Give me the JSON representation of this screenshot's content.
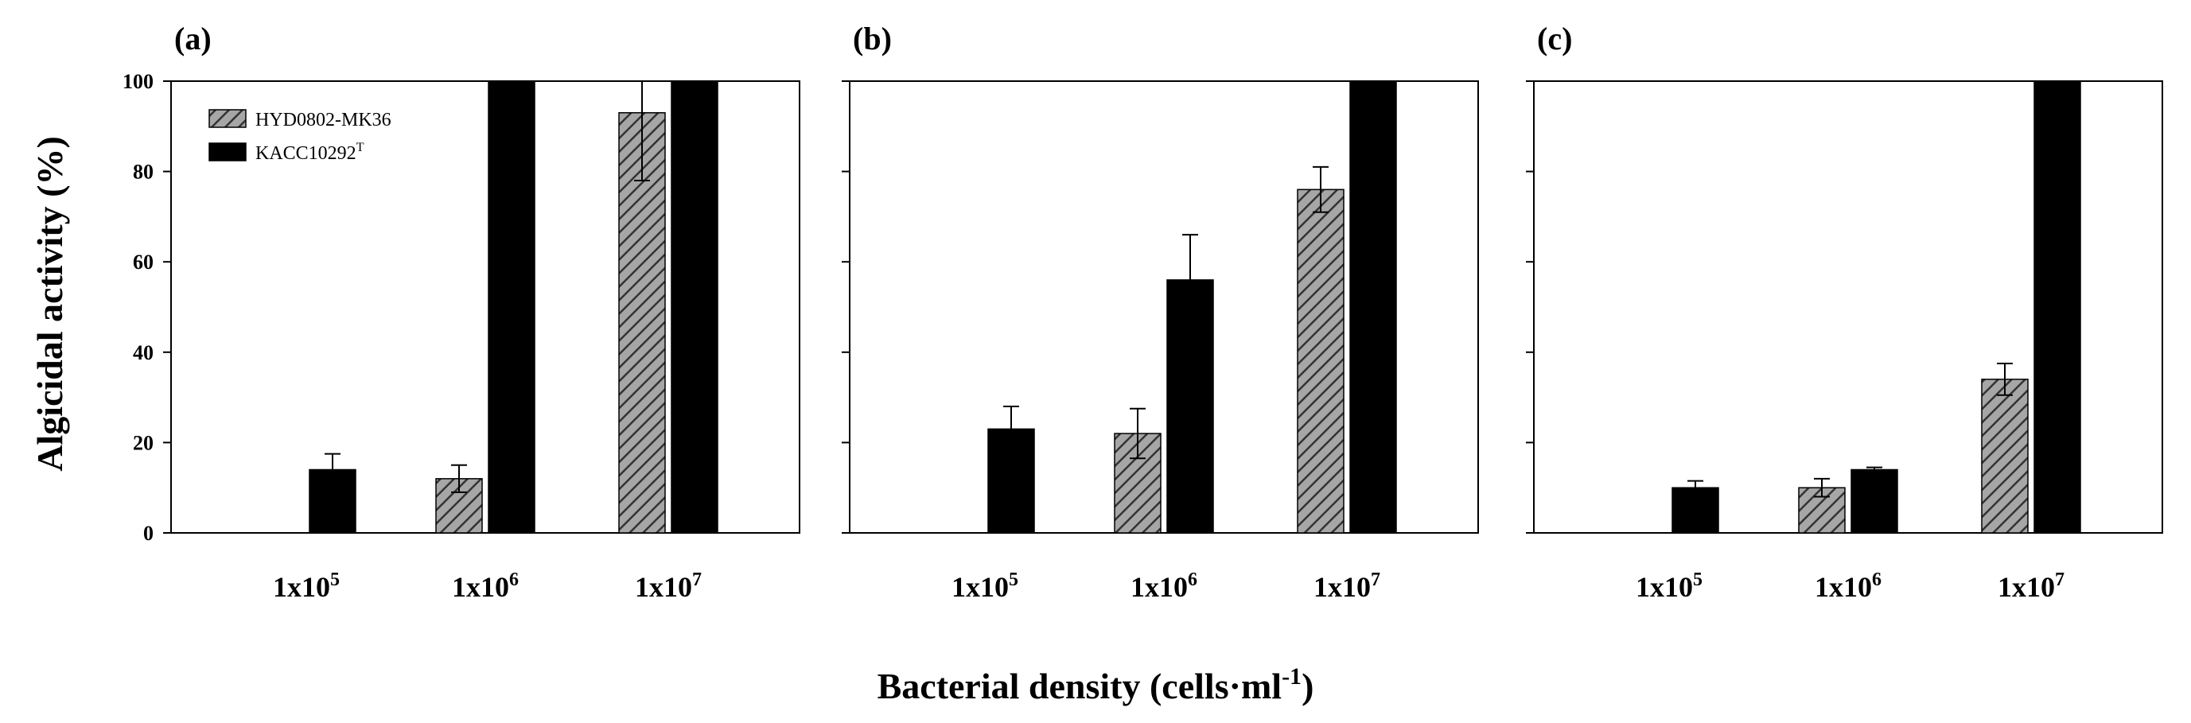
{
  "figure": {
    "ylabel": "Algicidal activity (%)",
    "xlabel_main": "Bacterial density (cells",
    "xlabel_dot": "·",
    "xlabel_unit": "ml",
    "xlabel_exp": "-1",
    "xlabel_close": ")"
  },
  "chart_data": [
    {
      "type": "bar",
      "panel_label": "(a)",
      "categories": [
        "1x10^5",
        "1x10^6",
        "1x10^7"
      ],
      "category_labels": [
        {
          "base": "1x10",
          "exp": "5"
        },
        {
          "base": "1x10",
          "exp": "6"
        },
        {
          "base": "1x10",
          "exp": "7"
        }
      ],
      "series": [
        {
          "name": "HYD0802-MK36",
          "pattern": "hatched-gray",
          "values": [
            null,
            12,
            93
          ],
          "errors": [
            null,
            3,
            15
          ]
        },
        {
          "name": "KACC10292",
          "name_sup": "T",
          "pattern": "solid-black",
          "values": [
            14,
            100,
            100
          ],
          "errors": [
            3.5,
            0,
            0
          ]
        }
      ],
      "ylim": [
        0,
        100
      ],
      "yticks": [
        0,
        20,
        40,
        60,
        80,
        100
      ],
      "show_ytick_labels": true,
      "legend": "top-left"
    },
    {
      "type": "bar",
      "panel_label": "(b)",
      "categories": [
        "1x10^5",
        "1x10^6",
        "1x10^7"
      ],
      "category_labels": [
        {
          "base": "1x10",
          "exp": "5"
        },
        {
          "base": "1x10",
          "exp": "6"
        },
        {
          "base": "1x10",
          "exp": "7"
        }
      ],
      "series": [
        {
          "name": "HYD0802-MK36",
          "pattern": "hatched-gray",
          "values": [
            null,
            22,
            76
          ],
          "errors": [
            null,
            5.5,
            5
          ]
        },
        {
          "name": "KACC10292",
          "name_sup": "T",
          "pattern": "solid-black",
          "values": [
            23,
            56,
            100
          ],
          "errors": [
            5,
            10,
            0
          ]
        }
      ],
      "ylim": [
        0,
        100
      ],
      "yticks": [
        0,
        20,
        40,
        60,
        80,
        100
      ],
      "show_ytick_labels": false
    },
    {
      "type": "bar",
      "panel_label": "(c)",
      "categories": [
        "1x10^5",
        "1x10^6",
        "1x10^7"
      ],
      "category_labels": [
        {
          "base": "1x10",
          "exp": "5"
        },
        {
          "base": "1x10",
          "exp": "6"
        },
        {
          "base": "1x10",
          "exp": "7"
        }
      ],
      "series": [
        {
          "name": "HYD0802-MK36",
          "pattern": "hatched-gray",
          "values": [
            null,
            10,
            34
          ],
          "errors": [
            null,
            2,
            3.5
          ]
        },
        {
          "name": "KACC10292",
          "name_sup": "T",
          "pattern": "solid-black",
          "values": [
            10,
            14,
            100
          ],
          "errors": [
            1.5,
            0.5,
            0
          ]
        }
      ],
      "ylim": [
        0,
        100
      ],
      "yticks": [
        0,
        20,
        40,
        60,
        80,
        100
      ],
      "show_ytick_labels": false
    }
  ]
}
